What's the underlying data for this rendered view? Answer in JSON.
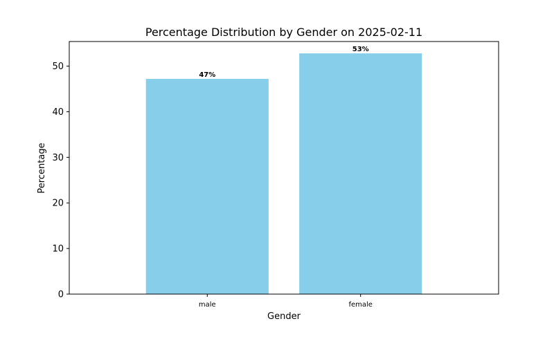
{
  "chart_data": {
    "type": "bar",
    "title": "Percentage Distribution by Gender on 2025-02-11",
    "xlabel": "Gender",
    "ylabel": "Percentage",
    "categories": [
      "male",
      "female"
    ],
    "values": [
      47.2,
      52.8
    ],
    "data_labels": [
      "47%",
      "53%"
    ],
    "ylim": [
      0,
      55.4
    ],
    "yticks": [
      0,
      10,
      20,
      30,
      40,
      50
    ],
    "ytick_labels": [
      "0",
      "10",
      "20",
      "30",
      "40",
      "50"
    ],
    "bar_color": "#87CEEB",
    "grid": false,
    "legend": "none"
  }
}
